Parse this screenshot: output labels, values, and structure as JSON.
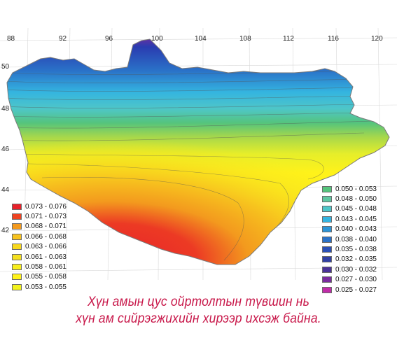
{
  "map": {
    "longitude_ticks": [
      "88",
      "92",
      "96",
      "100",
      "104",
      "108",
      "112",
      "116",
      "120"
    ],
    "latitude_ticks": [
      "50",
      "48",
      "46",
      "44",
      "42"
    ]
  },
  "legend_left": [
    {
      "range": "0.073 - 0.076",
      "color": "#e8222a"
    },
    {
      "range": "0.071 - 0.073",
      "color": "#ee4422"
    },
    {
      "range": "0.068 - 0.071",
      "color": "#f39a1e"
    },
    {
      "range": "0.066 - 0.068",
      "color": "#f7c21e"
    },
    {
      "range": "0.063 - 0.066",
      "color": "#f8d81e"
    },
    {
      "range": "0.061 - 0.063",
      "color": "#f5e01e"
    },
    {
      "range": "0.058 - 0.061",
      "color": "#f8ee1c"
    },
    {
      "range": "0.055 - 0.058",
      "color": "#fff21a"
    },
    {
      "range": "0.053 - 0.055",
      "color": "#f3f31c"
    }
  ],
  "legend_right": [
    {
      "range": "0.050 - 0.053",
      "color": "#55c47c"
    },
    {
      "range": "0.048 - 0.050",
      "color": "#5fc6a0"
    },
    {
      "range": "0.045 - 0.048",
      "color": "#4ec6c8"
    },
    {
      "range": "0.043 - 0.045",
      "color": "#34b4e0"
    },
    {
      "range": "0.040 - 0.043",
      "color": "#2b94d6"
    },
    {
      "range": "0.038 - 0.040",
      "color": "#2a72c8"
    },
    {
      "range": "0.035 - 0.038",
      "color": "#2a50b6"
    },
    {
      "range": "0.032 - 0.035",
      "color": "#3040a4"
    },
    {
      "range": "0.030 - 0.032",
      "color": "#4a3298"
    },
    {
      "range": "0.027 - 0.030",
      "color": "#7a2c9e"
    },
    {
      "range": "0.025 - 0.027",
      "color": "#c02ca8"
    }
  ],
  "caption": {
    "line1": "Хүн амын цус ойртолтын түвшин нь",
    "line2": "хүн ам сийрэгжихийн хирээр ихсэж байна."
  }
}
